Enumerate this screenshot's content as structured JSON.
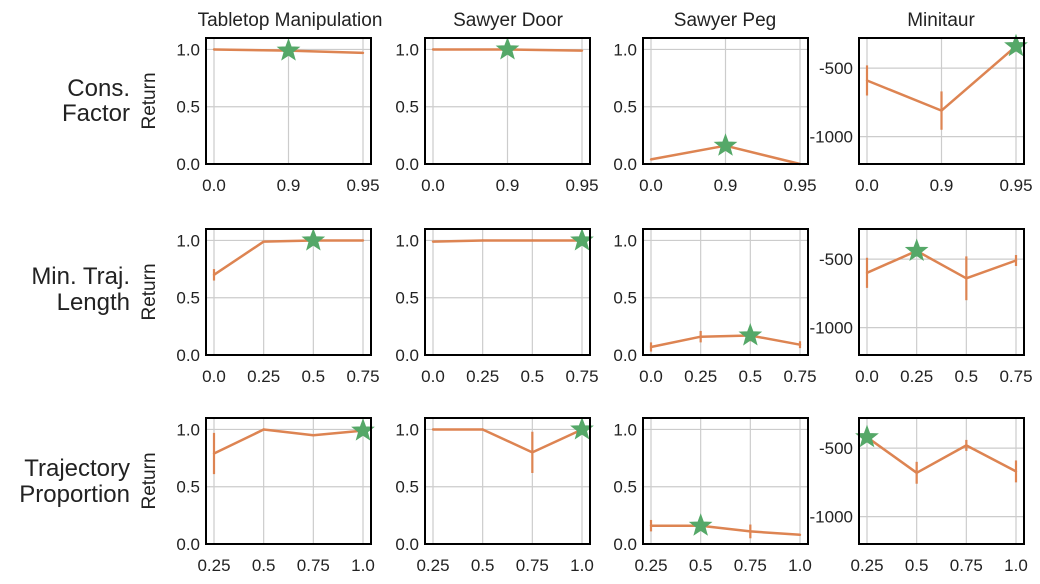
{
  "figure": {
    "column_titles": [
      "Tabletop Manipulation",
      "Sawyer Door",
      "Sawyer Peg",
      "Minitaur"
    ],
    "row_labels": [
      [
        "Cons.",
        "Factor"
      ],
      [
        "Min. Traj.",
        "Length"
      ],
      [
        "Trajectory",
        "Proportion"
      ]
    ],
    "y_axis_label": "Return"
  },
  "colors": {
    "line": "#dd8452",
    "star": "#55a868",
    "grid": "#cccccc",
    "axes": "#000000"
  },
  "chart_data": [
    {
      "type": "line",
      "row": 0,
      "col": 0,
      "categories": [
        "0.0",
        "0.9",
        "0.95"
      ],
      "values": [
        1.0,
        0.99,
        0.97
      ],
      "err": [
        0,
        0,
        0
      ],
      "best_index": 1,
      "ylim": [
        0,
        1.1
      ],
      "yticks": [
        0.0,
        0.5,
        1.0
      ],
      "ytick_labels": [
        "0.0",
        "0.5",
        "1.0"
      ],
      "ylabel": "Return",
      "grid": true
    },
    {
      "type": "line",
      "row": 0,
      "col": 1,
      "categories": [
        "0.0",
        "0.9",
        "0.95"
      ],
      "values": [
        1.0,
        1.0,
        0.99
      ],
      "err": [
        0,
        0,
        0
      ],
      "best_index": 1,
      "ylim": [
        0,
        1.1
      ],
      "yticks": [
        0.0,
        0.5,
        1.0
      ],
      "ytick_labels": [
        "0.0",
        "0.5",
        "1.0"
      ],
      "grid": true
    },
    {
      "type": "line",
      "row": 0,
      "col": 2,
      "categories": [
        "0.0",
        "0.9",
        "0.95"
      ],
      "values": [
        0.04,
        0.16,
        0.0
      ],
      "err": [
        0,
        0,
        0
      ],
      "best_index": 1,
      "ylim": [
        0,
        1.1
      ],
      "yticks": [
        0.0,
        0.5,
        1.0
      ],
      "ytick_labels": [
        "0.0",
        "0.5",
        "1.0"
      ],
      "grid": true
    },
    {
      "type": "line",
      "row": 0,
      "col": 3,
      "categories": [
        "0.0",
        "0.9",
        "0.95"
      ],
      "values": [
        -590,
        -810,
        -340
      ],
      "err": [
        110,
        140,
        0
      ],
      "best_index": 2,
      "ylim": [
        -1200,
        -280
      ],
      "yticks": [
        -1000,
        -500
      ],
      "ytick_labels": [
        "-1000",
        "-500"
      ],
      "grid": true
    },
    {
      "type": "line",
      "row": 1,
      "col": 0,
      "categories": [
        "0.0",
        "0.25",
        "0.5",
        "0.75"
      ],
      "values": [
        0.7,
        0.99,
        1.0,
        1.0
      ],
      "err": [
        0.05,
        0,
        0,
        0
      ],
      "best_index": 2,
      "ylim": [
        0,
        1.1
      ],
      "yticks": [
        0.0,
        0.5,
        1.0
      ],
      "ytick_labels": [
        "0.0",
        "0.5",
        "1.0"
      ],
      "ylabel": "Return",
      "grid": true
    },
    {
      "type": "line",
      "row": 1,
      "col": 1,
      "categories": [
        "0.0",
        "0.25",
        "0.5",
        "0.75"
      ],
      "values": [
        0.99,
        1.0,
        1.0,
        1.0
      ],
      "err": [
        0,
        0,
        0,
        0
      ],
      "best_index": 3,
      "ylim": [
        0,
        1.1
      ],
      "yticks": [
        0.0,
        0.5,
        1.0
      ],
      "ytick_labels": [
        "0.0",
        "0.5",
        "1.0"
      ],
      "grid": true
    },
    {
      "type": "line",
      "row": 1,
      "col": 2,
      "categories": [
        "0.0",
        "0.25",
        "0.5",
        "0.75"
      ],
      "values": [
        0.07,
        0.16,
        0.17,
        0.09
      ],
      "err": [
        0.04,
        0.05,
        0.05,
        0.03
      ],
      "best_index": 2,
      "ylim": [
        0,
        1.1
      ],
      "yticks": [
        0.0,
        0.5,
        1.0
      ],
      "ytick_labels": [
        "0.0",
        "0.5",
        "1.0"
      ],
      "grid": true
    },
    {
      "type": "line",
      "row": 1,
      "col": 3,
      "categories": [
        "0.0",
        "0.25",
        "0.5",
        "0.75"
      ],
      "values": [
        -600,
        -440,
        -640,
        -510
      ],
      "err": [
        110,
        30,
        160,
        40
      ],
      "best_index": 1,
      "ylim": [
        -1200,
        -280
      ],
      "yticks": [
        -1000,
        -500
      ],
      "ytick_labels": [
        "-1000",
        "-500"
      ],
      "grid": true
    },
    {
      "type": "line",
      "row": 2,
      "col": 0,
      "categories": [
        "0.25",
        "0.5",
        "0.75",
        "1.0"
      ],
      "values": [
        0.79,
        1.0,
        0.95,
        0.99
      ],
      "err": [
        0.18,
        0,
        0,
        0
      ],
      "best_index": 3,
      "ylim": [
        0,
        1.1
      ],
      "yticks": [
        0.0,
        0.5,
        1.0
      ],
      "ytick_labels": [
        "0.0",
        "0.5",
        "1.0"
      ],
      "ylabel": "Return",
      "grid": true
    },
    {
      "type": "line",
      "row": 2,
      "col": 1,
      "categories": [
        "0.25",
        "0.5",
        "0.75",
        "1.0"
      ],
      "values": [
        1.0,
        1.0,
        0.8,
        1.0
      ],
      "err": [
        0,
        0,
        0.18,
        0
      ],
      "best_index": 3,
      "ylim": [
        0,
        1.1
      ],
      "yticks": [
        0.0,
        0.5,
        1.0
      ],
      "ytick_labels": [
        "0.0",
        "0.5",
        "1.0"
      ],
      "grid": true
    },
    {
      "type": "line",
      "row": 2,
      "col": 2,
      "categories": [
        "0.25",
        "0.5",
        "0.75",
        "1.0"
      ],
      "values": [
        0.16,
        0.16,
        0.11,
        0.08
      ],
      "err": [
        0.05,
        0.02,
        0.06,
        0
      ],
      "best_index": 1,
      "ylim": [
        0,
        1.1
      ],
      "yticks": [
        0.0,
        0.5,
        1.0
      ],
      "ytick_labels": [
        "0.0",
        "0.5",
        "1.0"
      ],
      "grid": true
    },
    {
      "type": "line",
      "row": 2,
      "col": 3,
      "categories": [
        "0.25",
        "0.5",
        "0.75",
        "1.0"
      ],
      "values": [
        -420,
        -680,
        -480,
        -670
      ],
      "err": [
        0,
        80,
        40,
        80
      ],
      "best_index": 0,
      "ylim": [
        -1200,
        -280
      ],
      "yticks": [
        -1000,
        -500
      ],
      "ytick_labels": [
        "-1000",
        "-500"
      ],
      "grid": true
    }
  ]
}
